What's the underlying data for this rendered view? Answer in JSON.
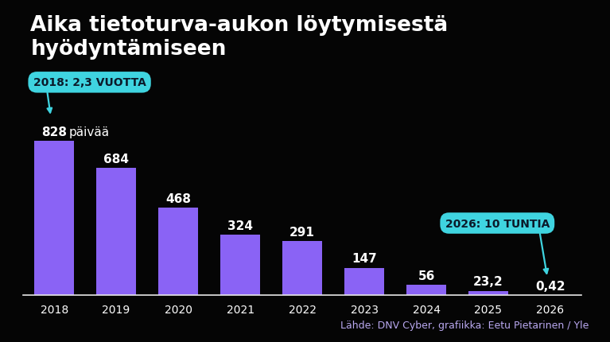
{
  "chart_data": {
    "type": "bar",
    "title": "Aika tietoturva-aukon löytymisestä hyödyntämiseen",
    "categories": [
      "2018",
      "2019",
      "2020",
      "2021",
      "2022",
      "2023",
      "2024",
      "2025",
      "2026"
    ],
    "values": [
      828,
      684,
      468,
      324,
      291,
      147,
      56,
      23.2,
      0.42
    ],
    "value_labels": [
      "828",
      "684",
      "468",
      "324",
      "291",
      "147",
      "56",
      "23,2",
      "0,42"
    ],
    "unit": "päivää",
    "annotations": [
      {
        "text": "2018: 2,3 VUOTTA",
        "category": "2018"
      },
      {
        "text": "2026: 10 TUNTIA",
        "category": "2026"
      }
    ],
    "source": "Lähde: DNV Cyber, grafiikka: Eetu Pietarinen / Yle",
    "color": "#8a63f5",
    "ylim": [
      0,
      828
    ],
    "data_labels": true,
    "tick_labels": "x",
    "grid": false
  }
}
